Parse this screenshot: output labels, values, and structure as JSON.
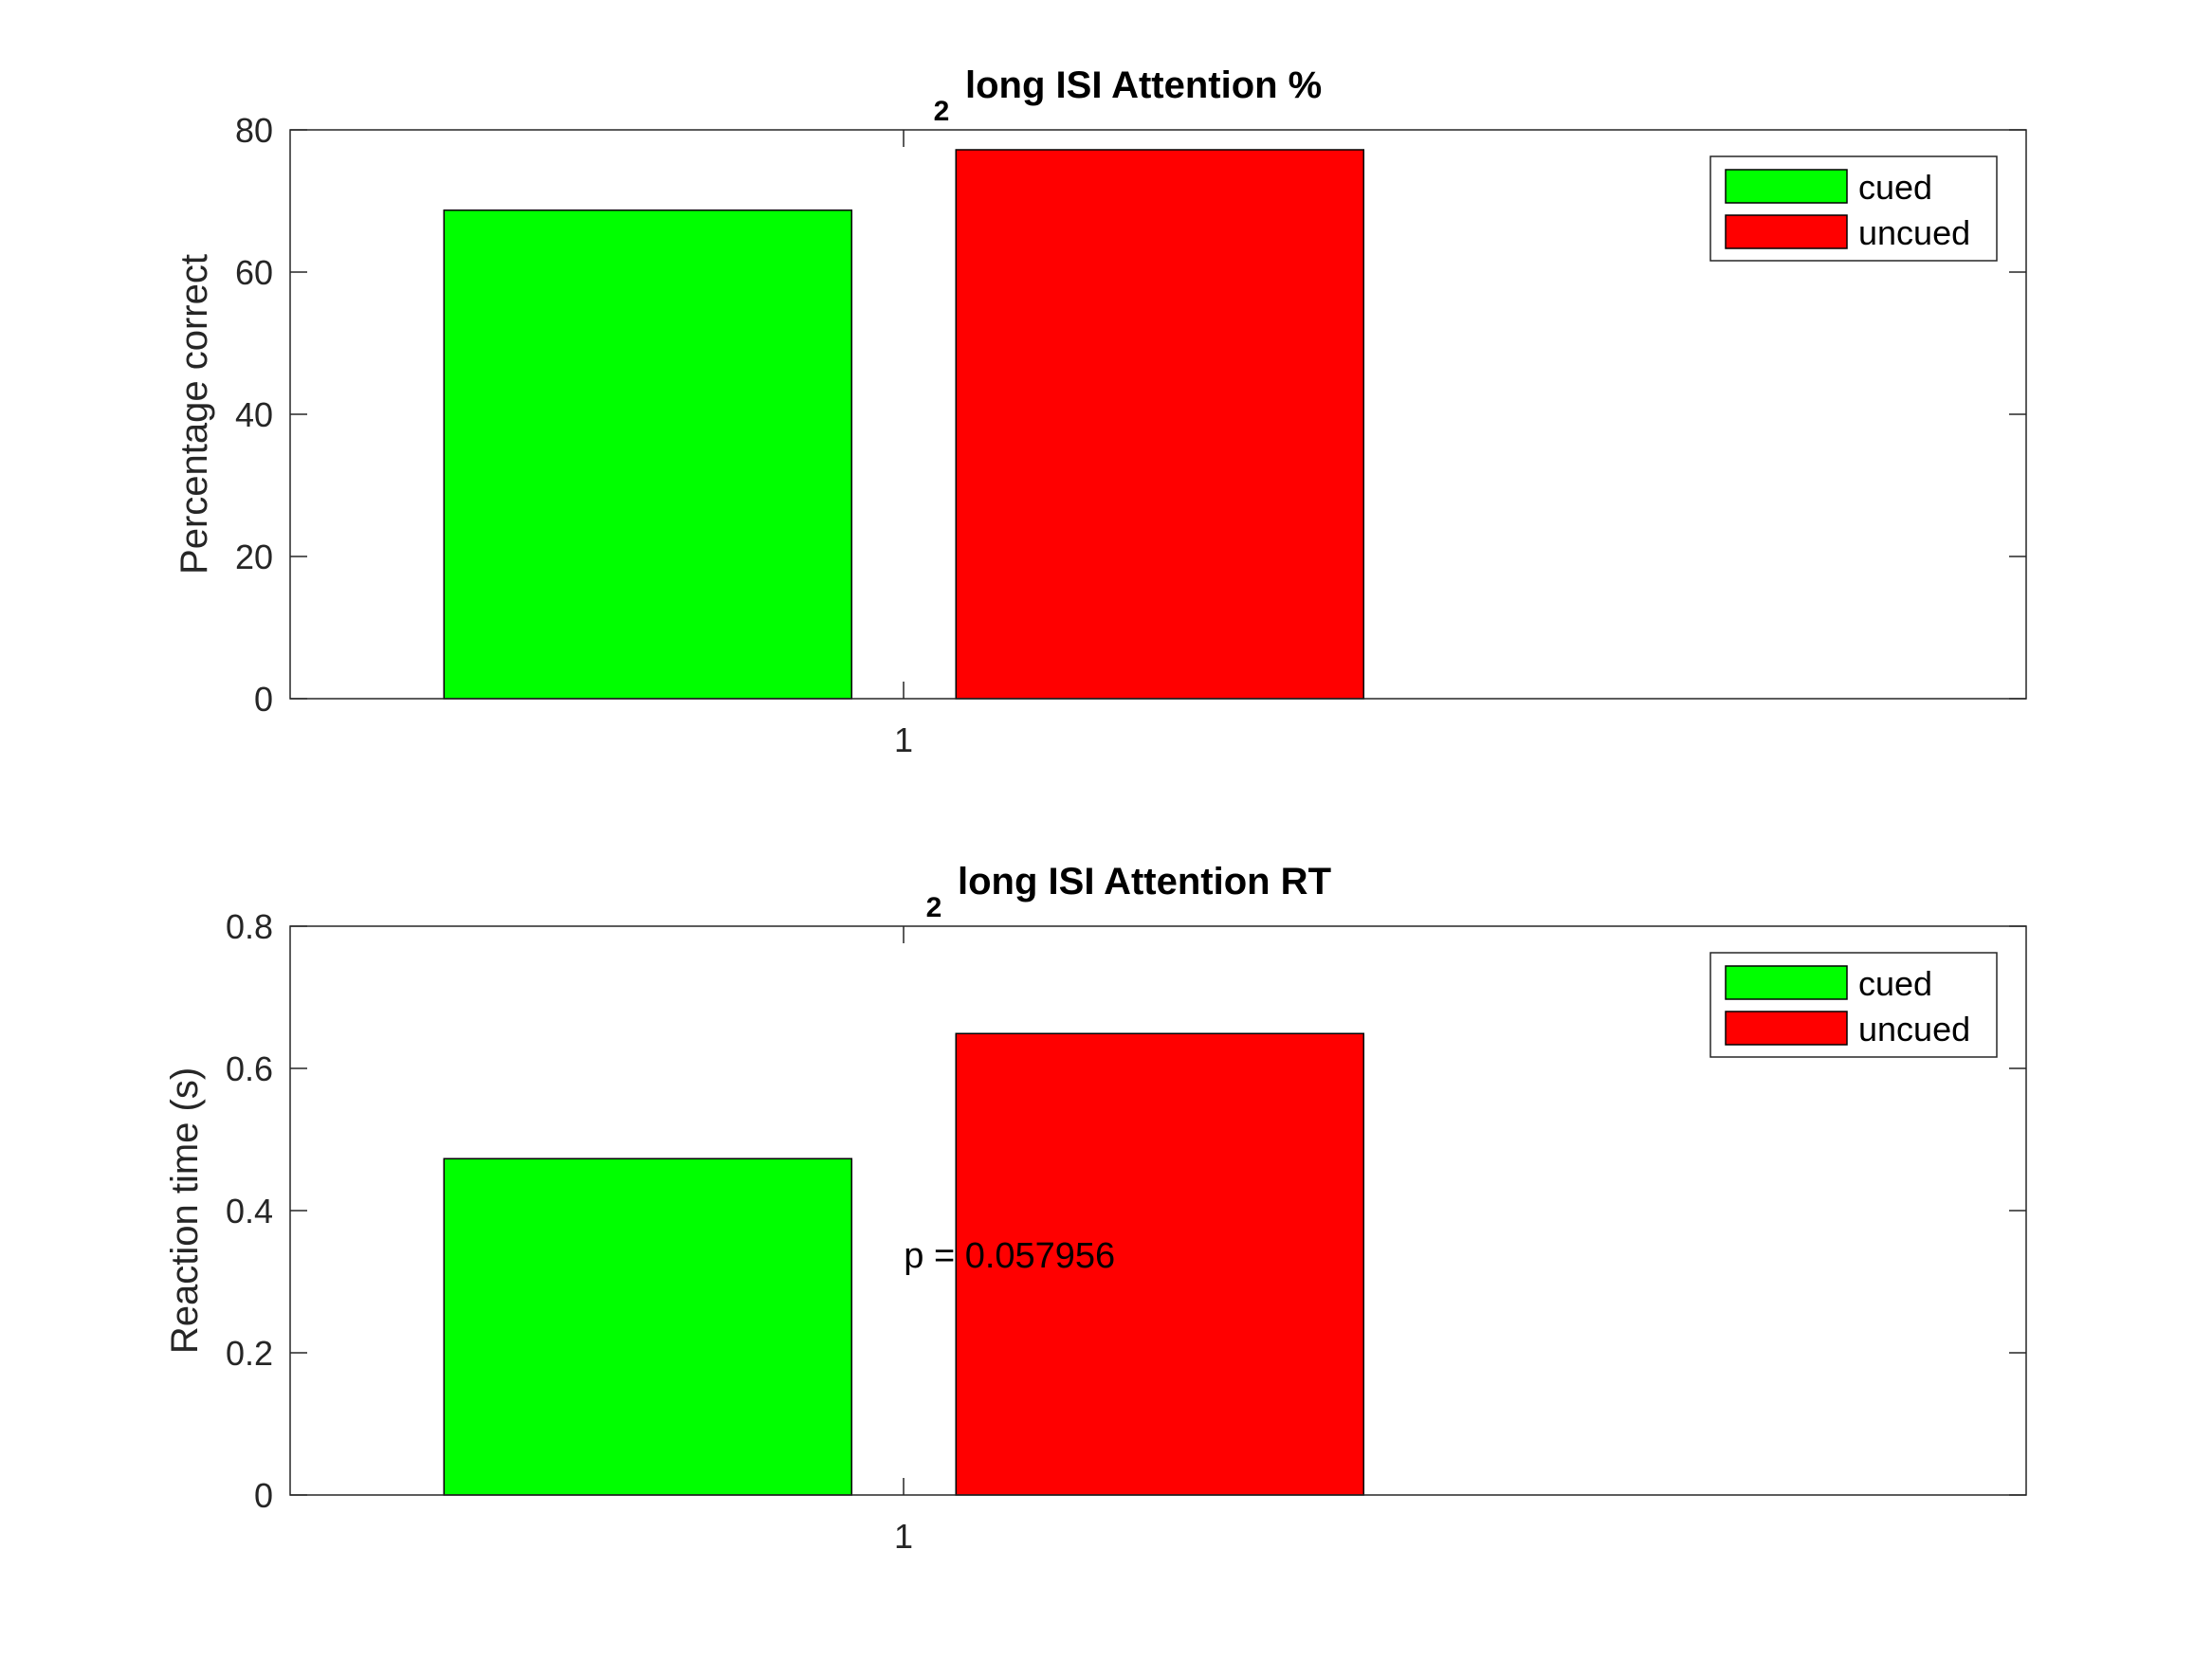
{
  "chart_data": [
    {
      "type": "bar",
      "title_prefix": "2",
      "title": "long ISI Attention %",
      "xlabel": "",
      "ylabel": "Percentage correct",
      "categories": [
        "1"
      ],
      "ylim": [
        0,
        80
      ],
      "yticks": [
        "0",
        "20",
        "40",
        "60",
        "80"
      ],
      "series": [
        {
          "name": "cued",
          "values": [
            68.7
          ],
          "color": "#00ff00"
        },
        {
          "name": "uncued",
          "values": [
            77.2
          ],
          "color": "#ff0000"
        }
      ],
      "legend": "top-right",
      "grid": false
    },
    {
      "type": "bar",
      "title_prefix": "2",
      "title": "long ISI Attention RT",
      "xlabel": "",
      "ylabel": "Reaction time (s)",
      "categories": [
        "1"
      ],
      "ylim": [
        0,
        0.8
      ],
      "yticks": [
        "0",
        "0.2",
        "0.4",
        "0.6",
        "0.8"
      ],
      "series": [
        {
          "name": "cued",
          "values": [
            0.473
          ],
          "color": "#00ff00"
        },
        {
          "name": "uncued",
          "values": [
            0.649
          ],
          "color": "#ff0000"
        }
      ],
      "annotation": {
        "text": "p = 0.057956",
        "x": 1,
        "y": 0.32
      },
      "legend": "top-right",
      "grid": false
    }
  ]
}
